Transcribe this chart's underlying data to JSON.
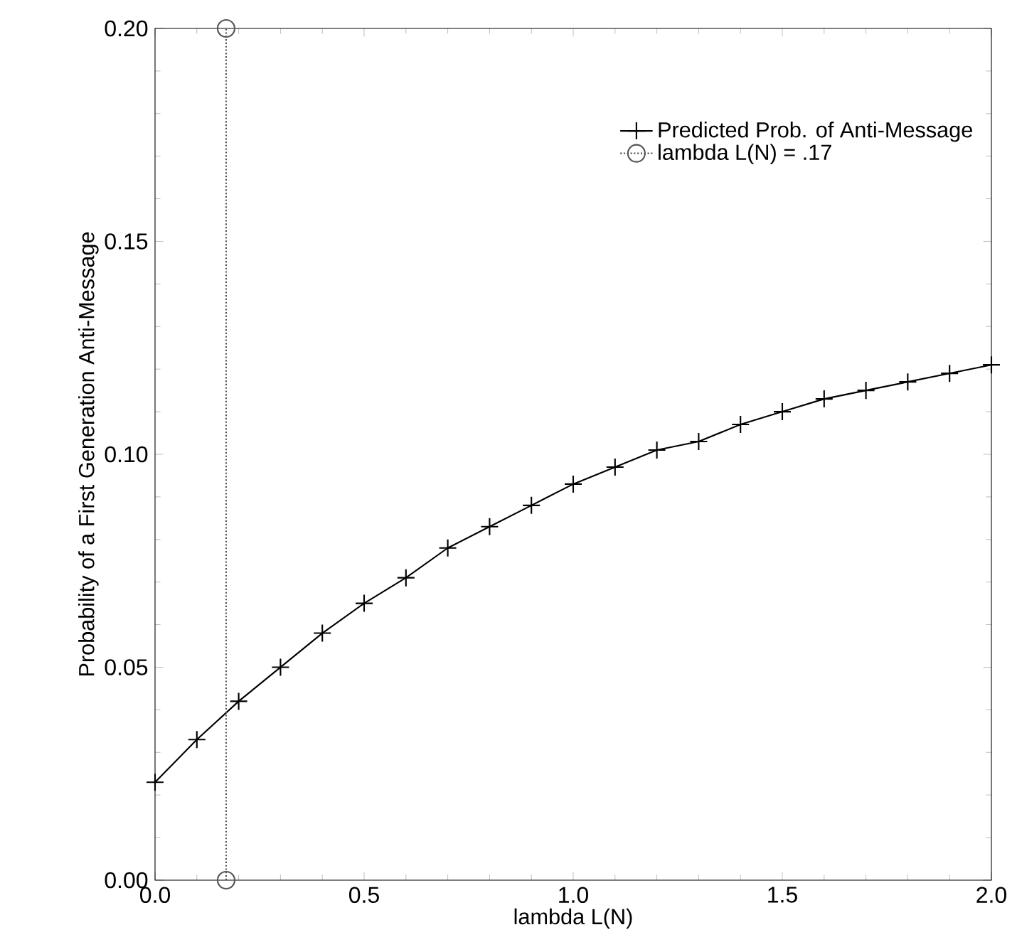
{
  "chart_data": {
    "type": "line",
    "xlabel": "lambda L(N)",
    "ylabel": "Probability of a First Generation Anti-Message",
    "series": [
      {
        "name": "Predicted Prob. of Anti-Message",
        "color": "#000000",
        "marker": "cross",
        "line_style": "solid",
        "x": [
          0.0,
          0.1,
          0.2,
          0.3,
          0.4,
          0.5,
          0.6,
          0.7,
          0.8,
          0.9,
          1.0,
          1.1,
          1.2,
          1.3,
          1.4,
          1.5,
          1.6,
          1.7,
          1.8,
          1.9,
          2.0
        ],
        "values": [
          0.023,
          0.033,
          0.042,
          0.05,
          0.058,
          0.065,
          0.071,
          0.078,
          0.083,
          0.088,
          0.093,
          0.097,
          0.101,
          0.103,
          0.107,
          0.11,
          0.113,
          0.115,
          0.117,
          0.119,
          0.121
        ]
      },
      {
        "name": "lambda L(N) = .17",
        "color": "#555555",
        "marker": "circle",
        "line_style": "dotted",
        "x": [
          0.17,
          0.17
        ],
        "values": [
          0.0,
          0.2
        ]
      }
    ],
    "xlim": [
      0,
      2
    ],
    "ylim": [
      0,
      0.2
    ],
    "xticks": [
      {
        "value": 0,
        "label": "0.0"
      },
      {
        "value": 0.5,
        "label": "0.5"
      },
      {
        "value": 1,
        "label": "1.0"
      },
      {
        "value": 1.5,
        "label": "1.5"
      },
      {
        "value": 2,
        "label": "2.0"
      }
    ],
    "yticks": [
      {
        "value": 0,
        "label": "0.00"
      },
      {
        "value": 0.05,
        "label": "0.05"
      },
      {
        "value": 0.1,
        "label": "0.10"
      },
      {
        "value": 0.15,
        "label": "0.15"
      },
      {
        "value": 0.2,
        "label": "0.20"
      }
    ],
    "legend": "top right",
    "grid": false
  }
}
